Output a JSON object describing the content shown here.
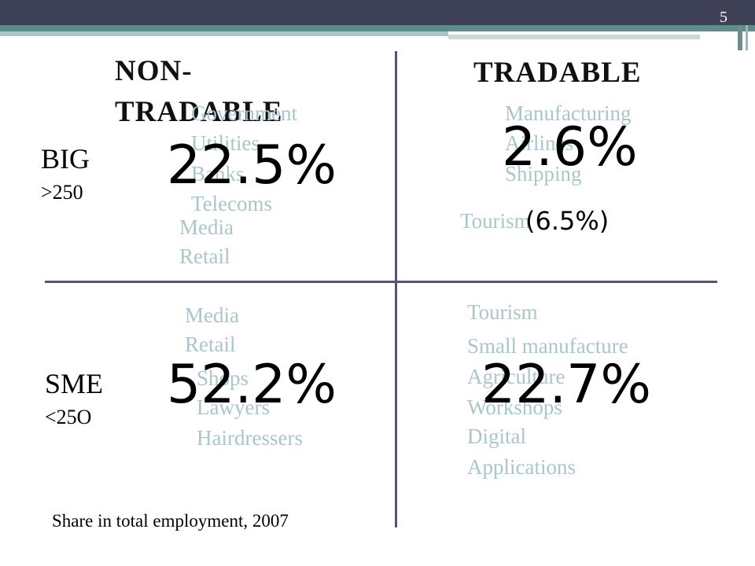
{
  "slide_number": "5",
  "columns": {
    "non_tradable": [
      "NON-",
      "TRADABLE"
    ],
    "tradable": "TRADABLE"
  },
  "rows": {
    "big": {
      "label": "BIG",
      "size": ">250"
    },
    "sme": {
      "label": "SME",
      "size": "<25O"
    }
  },
  "quadrants": {
    "big_non_tradable": {
      "share": "22.5%",
      "examples": [
        "Government",
        "Utilities",
        "Banks",
        "Telecoms",
        "Media",
        "Retail"
      ]
    },
    "big_tradable": {
      "share": "2.6%",
      "note": "(6.5%)",
      "examples": [
        "Manufacturing",
        "Airlines",
        "Shipping",
        "Tourism"
      ]
    },
    "sme_non_tradable": {
      "share": "52.2%",
      "examples": [
        "Media",
        "Retail",
        "Shops",
        "Lawyers",
        "Hairdressers"
      ]
    },
    "sme_tradable": {
      "share": "22.7%",
      "examples": [
        "Tourism",
        "Small manufacture",
        "Agriculture",
        "Workshops",
        "Digital",
        "Applications"
      ]
    }
  },
  "footer": "Share in total employment, 2007"
}
